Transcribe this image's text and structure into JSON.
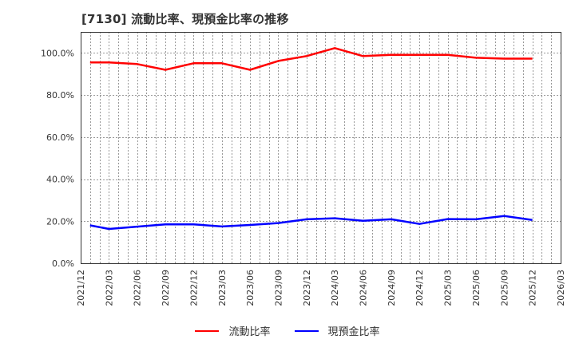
{
  "title": "[7130]  流動比率、現預金比率の推移",
  "colors": {
    "current_ratio": "#ff0000",
    "cash_ratio": "#0000ff",
    "grid": "#999999",
    "axis": "#333333",
    "text": "#333333"
  },
  "legend": {
    "items": [
      {
        "label": "流動比率",
        "color": "#ff0000"
      },
      {
        "label": "現預金比率",
        "color": "#0000ff"
      }
    ]
  },
  "chart_data": {
    "type": "line",
    "title": "[7130]  流動比率、現預金比率の推移",
    "xlabel": "",
    "ylabel": "",
    "ylim": [
      0,
      110
    ],
    "grid": true,
    "legend_position": "bottom",
    "y_ticks": [
      "0.0%",
      "20.0%",
      "40.0%",
      "60.0%",
      "80.0%",
      "100.0%"
    ],
    "y_tick_values": [
      0,
      20,
      40,
      60,
      80,
      100
    ],
    "x_ticks": [
      "2021/12",
      "2022/03",
      "2022/06",
      "2022/09",
      "2022/12",
      "2023/03",
      "2023/06",
      "2023/09",
      "2023/12",
      "2024/03",
      "2024/06",
      "2024/09",
      "2024/12",
      "2025/03",
      "2025/06",
      "2025/09",
      "2025/12",
      "2026/03"
    ],
    "x_months_from_start": [
      1,
      3,
      6,
      9,
      12,
      15,
      18,
      21,
      24,
      27,
      30,
      33,
      36,
      39,
      42,
      45,
      48
    ],
    "x": [
      "2022/01",
      "2022/03",
      "2022/06",
      "2022/09",
      "2022/12",
      "2023/03",
      "2023/06",
      "2023/09",
      "2023/12",
      "2024/03",
      "2024/06",
      "2024/09",
      "2024/12",
      "2025/03",
      "2025/06",
      "2025/09",
      "2025/12"
    ],
    "series": [
      {
        "name": "流動比率",
        "color": "#ff0000",
        "values": [
          95.5,
          95.5,
          94.7,
          92.0,
          95.1,
          95.1,
          92.0,
          96.2,
          98.5,
          102.3,
          98.5,
          99.1,
          99.1,
          99.1,
          97.7,
          97.3,
          97.3
        ]
      },
      {
        "name": "現預金比率",
        "color": "#0000ff",
        "values": [
          18.0,
          16.3,
          17.4,
          18.5,
          18.5,
          17.5,
          18.2,
          19.1,
          20.9,
          21.4,
          20.2,
          20.9,
          18.7,
          21.0,
          20.9,
          22.5,
          20.6
        ]
      }
    ]
  }
}
